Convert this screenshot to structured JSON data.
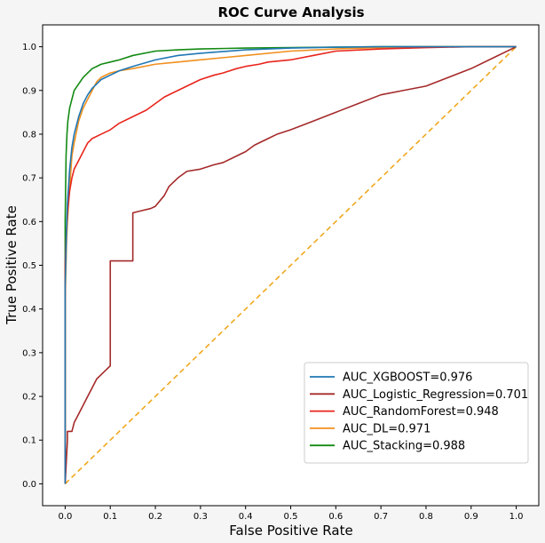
{
  "chart_data": {
    "type": "line",
    "title": "ROC Curve Analysis",
    "xlabel": "False Positive Rate",
    "ylabel": "True Positive Rate",
    "xlim": [
      -0.05,
      1.05
    ],
    "ylim": [
      -0.05,
      1.05
    ],
    "xticks": [
      "0.0",
      "0.1",
      "0.2",
      "0.3",
      "0.4",
      "0.5",
      "0.6",
      "0.7",
      "0.8",
      "0.9",
      "1.0"
    ],
    "yticks": [
      "0.0",
      "0.1",
      "0.2",
      "0.3",
      "0.4",
      "0.5",
      "0.6",
      "0.7",
      "0.8",
      "0.9",
      "1.0"
    ],
    "grid": false,
    "legend_position": "lower-right",
    "series": [
      {
        "name": "AUC_XGBOOST=0.976",
        "color": "#1f77b4",
        "style": "solid",
        "x": [
          0,
          0,
          0.003,
          0.005,
          0.01,
          0.015,
          0.02,
          0.03,
          0.04,
          0.05,
          0.06,
          0.07,
          0.08,
          0.1,
          0.12,
          0.15,
          0.2,
          0.25,
          0.3,
          0.4,
          0.5,
          0.6,
          0.7,
          0.8,
          0.9,
          1.0
        ],
        "y": [
          0,
          0.45,
          0.58,
          0.64,
          0.72,
          0.77,
          0.8,
          0.84,
          0.87,
          0.89,
          0.905,
          0.915,
          0.925,
          0.935,
          0.945,
          0.955,
          0.97,
          0.98,
          0.985,
          0.993,
          0.997,
          0.999,
          1.0,
          1.0,
          1.0,
          1.0
        ]
      },
      {
        "name": "AUC_Logistic_Regression=0.701",
        "color": "#a52a2a",
        "style": "solid",
        "x": [
          0,
          0.005,
          0.005,
          0.015,
          0.02,
          0.03,
          0.04,
          0.05,
          0.06,
          0.07,
          0.08,
          0.09,
          0.1,
          0.1,
          0.11,
          0.14,
          0.15,
          0.15,
          0.17,
          0.19,
          0.2,
          0.22,
          0.23,
          0.24,
          0.25,
          0.27,
          0.3,
          0.33,
          0.35,
          0.37,
          0.4,
          0.42,
          0.45,
          0.47,
          0.5,
          0.55,
          0.6,
          0.65,
          0.7,
          0.75,
          0.8,
          0.85,
          0.9,
          0.95,
          1.0
        ],
        "y": [
          0,
          0.1,
          0.12,
          0.12,
          0.14,
          0.16,
          0.18,
          0.2,
          0.22,
          0.24,
          0.25,
          0.26,
          0.27,
          0.51,
          0.51,
          0.51,
          0.51,
          0.62,
          0.625,
          0.63,
          0.635,
          0.66,
          0.68,
          0.69,
          0.7,
          0.715,
          0.72,
          0.73,
          0.735,
          0.745,
          0.76,
          0.775,
          0.79,
          0.8,
          0.81,
          0.83,
          0.85,
          0.87,
          0.89,
          0.9,
          0.91,
          0.93,
          0.95,
          0.975,
          1.0
        ]
      },
      {
        "name": "AUC_RandomForest=0.948",
        "color": "#e8251c",
        "style": "solid",
        "x": [
          0,
          0,
          0.003,
          0.006,
          0.01,
          0.015,
          0.02,
          0.03,
          0.04,
          0.05,
          0.06,
          0.08,
          0.1,
          0.12,
          0.15,
          0.18,
          0.2,
          0.22,
          0.25,
          0.28,
          0.3,
          0.33,
          0.35,
          0.38,
          0.4,
          0.43,
          0.45,
          0.5,
          0.55,
          0.6,
          0.7,
          0.8,
          0.9,
          1.0
        ],
        "y": [
          0,
          0.5,
          0.58,
          0.63,
          0.67,
          0.7,
          0.72,
          0.74,
          0.76,
          0.78,
          0.79,
          0.8,
          0.81,
          0.825,
          0.84,
          0.855,
          0.87,
          0.885,
          0.9,
          0.915,
          0.925,
          0.935,
          0.94,
          0.95,
          0.955,
          0.96,
          0.965,
          0.97,
          0.98,
          0.99,
          0.995,
          0.998,
          1.0,
          1.0
        ]
      },
      {
        "name": "AUC_DL=0.971",
        "color": "#f0901e",
        "style": "solid",
        "x": [
          0,
          0,
          0.003,
          0.005,
          0.01,
          0.015,
          0.02,
          0.03,
          0.04,
          0.05,
          0.06,
          0.07,
          0.08,
          0.1,
          0.12,
          0.15,
          0.2,
          0.25,
          0.3,
          0.35,
          0.4,
          0.5,
          0.6,
          0.7,
          0.8,
          0.9,
          1.0
        ],
        "y": [
          0,
          0.42,
          0.55,
          0.6,
          0.68,
          0.75,
          0.78,
          0.83,
          0.86,
          0.88,
          0.9,
          0.92,
          0.93,
          0.94,
          0.945,
          0.95,
          0.96,
          0.965,
          0.97,
          0.975,
          0.98,
          0.99,
          0.995,
          0.998,
          1.0,
          1.0,
          1.0
        ]
      },
      {
        "name": "AUC_Stacking=0.988",
        "color": "#138a13",
        "style": "solid",
        "x": [
          0,
          0,
          0.002,
          0.004,
          0.006,
          0.01,
          0.015,
          0.02,
          0.03,
          0.04,
          0.05,
          0.06,
          0.07,
          0.08,
          0.1,
          0.12,
          0.15,
          0.2,
          0.25,
          0.3,
          0.4,
          0.5,
          0.6,
          0.7,
          0.8,
          0.9,
          1.0
        ],
        "y": [
          0,
          0.6,
          0.75,
          0.8,
          0.83,
          0.86,
          0.88,
          0.9,
          0.915,
          0.93,
          0.94,
          0.95,
          0.955,
          0.96,
          0.965,
          0.97,
          0.98,
          0.99,
          0.993,
          0.995,
          0.997,
          0.998,
          0.999,
          1.0,
          1.0,
          1.0,
          1.0
        ]
      },
      {
        "name": "",
        "color": "#f0a81e",
        "style": "dashed",
        "x": [
          0,
          1
        ],
        "y": [
          0,
          1
        ]
      }
    ]
  }
}
